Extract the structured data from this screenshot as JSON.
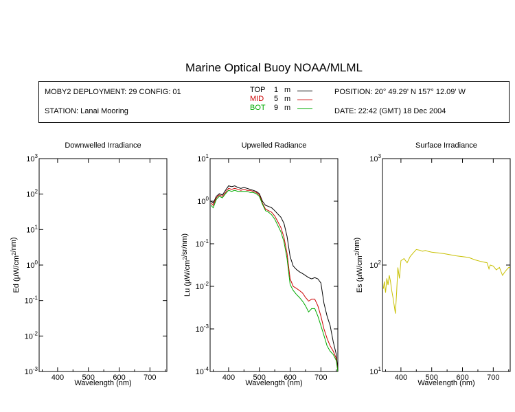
{
  "header": {
    "title": "Marine Optical Buoy NOAA/MLML"
  },
  "info": {
    "deployment": "MOBY2 DEPLOYMENT: 29 CONFIG: 01",
    "station": "STATION: Lanai Mooring",
    "position": "POSITION: 20° 49.29' N   157° 12.09' W",
    "date": "DATE: 22:42 (GMT) 18 Dec 2004",
    "legend": [
      {
        "label": "TOP",
        "depth": "1",
        "unit": "m",
        "color": "#000000"
      },
      {
        "label": "MID",
        "depth": "5",
        "unit": "m",
        "color": "#cc0000"
      },
      {
        "label": "BOT",
        "depth": "9",
        "unit": "m",
        "color": "#00aa00"
      }
    ]
  },
  "chart_data": [
    {
      "type": "line",
      "title": "Downwelled Irradiance",
      "xlabel": "Wavelength (nm)",
      "ylabel": "Ed  (µW/cm²/nm)",
      "yscale": "log",
      "xlim": [
        340,
        755
      ],
      "ylim": [
        0.001,
        1000
      ],
      "xticks": [
        400,
        500,
        600,
        700
      ],
      "yticks": [
        {
          "v": 0.001,
          "m": "10",
          "e": "-3"
        },
        {
          "v": 0.01,
          "m": "10",
          "e": "-2"
        },
        {
          "v": 0.1,
          "m": "10",
          "e": "-1"
        },
        {
          "v": 1,
          "m": "10",
          "e": "0"
        },
        {
          "v": 10,
          "m": "10",
          "e": "1"
        },
        {
          "v": 100,
          "m": "10",
          "e": "2"
        },
        {
          "v": 1000,
          "m": "10",
          "e": "3"
        }
      ],
      "series": []
    },
    {
      "type": "line",
      "title": "Upwelled Radiance",
      "xlabel": "Wavelength (nm)",
      "ylabel": "Lu  (µW/cm²/sr/nm)",
      "yscale": "log",
      "xlim": [
        340,
        755
      ],
      "ylim": [
        0.0001,
        10
      ],
      "xticks": [
        400,
        500,
        600,
        700
      ],
      "yticks": [
        {
          "v": 0.0001,
          "m": "10",
          "e": "-4"
        },
        {
          "v": 0.001,
          "m": "10",
          "e": "-3"
        },
        {
          "v": 0.01,
          "m": "10",
          "e": "-2"
        },
        {
          "v": 0.1,
          "m": "10",
          "e": "-1"
        },
        {
          "v": 1,
          "m": "10",
          "e": "0"
        },
        {
          "v": 10,
          "m": "10",
          "e": "1"
        }
      ],
      "series": [
        {
          "name": "TOP",
          "color": "#000000",
          "x": [
            343,
            350,
            360,
            370,
            380,
            390,
            400,
            410,
            420,
            430,
            440,
            450,
            460,
            470,
            480,
            490,
            500,
            510,
            520,
            530,
            540,
            550,
            560,
            570,
            580,
            590,
            600,
            610,
            620,
            630,
            640,
            650,
            660,
            670,
            680,
            690,
            700,
            710,
            720,
            730,
            740,
            750,
            755
          ],
          "y": [
            1.0,
            0.9,
            1.3,
            1.5,
            1.4,
            1.8,
            2.3,
            2.2,
            2.3,
            2.1,
            2.0,
            2.1,
            2.0,
            1.9,
            1.8,
            1.7,
            1.5,
            1.0,
            0.8,
            0.75,
            0.7,
            0.6,
            0.5,
            0.42,
            0.3,
            0.15,
            0.05,
            0.03,
            0.025,
            0.022,
            0.02,
            0.018,
            0.016,
            0.015,
            0.016,
            0.015,
            0.012,
            0.004,
            0.002,
            0.0012,
            0.0005,
            0.00025,
            0.0001
          ]
        },
        {
          "name": "MID",
          "color": "#cc0000",
          "x": [
            343,
            350,
            360,
            370,
            380,
            390,
            400,
            410,
            420,
            430,
            440,
            450,
            460,
            470,
            480,
            490,
            500,
            510,
            520,
            530,
            540,
            550,
            560,
            570,
            580,
            590,
            600,
            610,
            620,
            630,
            640,
            650,
            660,
            670,
            680,
            690,
            700,
            710,
            720,
            730,
            740,
            750,
            755
          ],
          "y": [
            0.9,
            0.8,
            1.2,
            1.4,
            1.3,
            1.6,
            2.0,
            1.9,
            2.0,
            1.9,
            1.8,
            1.9,
            1.8,
            1.8,
            1.7,
            1.6,
            1.4,
            0.9,
            0.65,
            0.6,
            0.55,
            0.45,
            0.33,
            0.24,
            0.14,
            0.06,
            0.015,
            0.01,
            0.009,
            0.008,
            0.007,
            0.0055,
            0.0045,
            0.005,
            0.005,
            0.0035,
            0.002,
            0.001,
            0.0006,
            0.0004,
            0.0003,
            0.0002,
            0.0001
          ]
        },
        {
          "name": "BOT",
          "color": "#00aa00",
          "x": [
            343,
            350,
            360,
            370,
            380,
            390,
            400,
            410,
            420,
            430,
            440,
            450,
            460,
            470,
            480,
            490,
            500,
            510,
            520,
            530,
            540,
            550,
            560,
            570,
            580,
            590,
            600,
            610,
            620,
            630,
            640,
            650,
            660,
            670,
            680,
            690,
            700,
            710,
            720,
            730,
            740,
            750,
            755
          ],
          "y": [
            0.8,
            0.7,
            1.1,
            1.3,
            1.2,
            1.5,
            1.8,
            1.7,
            1.8,
            1.7,
            1.7,
            1.7,
            1.7,
            1.6,
            1.6,
            1.5,
            1.3,
            0.85,
            0.6,
            0.55,
            0.48,
            0.38,
            0.27,
            0.19,
            0.11,
            0.045,
            0.011,
            0.008,
            0.0065,
            0.0055,
            0.0045,
            0.0035,
            0.0025,
            0.003,
            0.003,
            0.002,
            0.0012,
            0.0007,
            0.0004,
            0.0003,
            0.00025,
            0.00018,
            0.0001
          ]
        }
      ]
    },
    {
      "type": "line",
      "title": "Surface Irradiance",
      "xlabel": "Wavelength (nm)",
      "ylabel": "Es  (µW/cm²/nm)",
      "yscale": "log",
      "xlim": [
        340,
        755
      ],
      "ylim": [
        10,
        1000
      ],
      "xticks": [
        400,
        500,
        600,
        700
      ],
      "yticks": [
        {
          "v": 10,
          "m": "10",
          "e": "1"
        },
        {
          "v": 100,
          "m": "10",
          "e": "2"
        },
        {
          "v": 1000,
          "m": "10",
          "e": "3"
        }
      ],
      "series": [
        {
          "name": "Es",
          "color": "#c8c000",
          "x": [
            343,
            346,
            350,
            354,
            358,
            362,
            366,
            370,
            374,
            378,
            382,
            386,
            390,
            395,
            400,
            410,
            420,
            430,
            440,
            450,
            460,
            470,
            480,
            490,
            500,
            520,
            540,
            560,
            580,
            600,
            620,
            640,
            660,
            680,
            686,
            690,
            700,
            710,
            720,
            730,
            740,
            750,
            755
          ],
          "y": [
            60,
            70,
            55,
            75,
            65,
            80,
            70,
            58,
            50,
            42,
            35,
            55,
            95,
            75,
            110,
            115,
            105,
            120,
            130,
            140,
            138,
            135,
            137,
            134,
            132,
            130,
            128,
            125,
            122,
            120,
            118,
            112,
            108,
            105,
            92,
            100,
            98,
            90,
            95,
            80,
            88,
            95,
            95
          ]
        }
      ]
    }
  ]
}
